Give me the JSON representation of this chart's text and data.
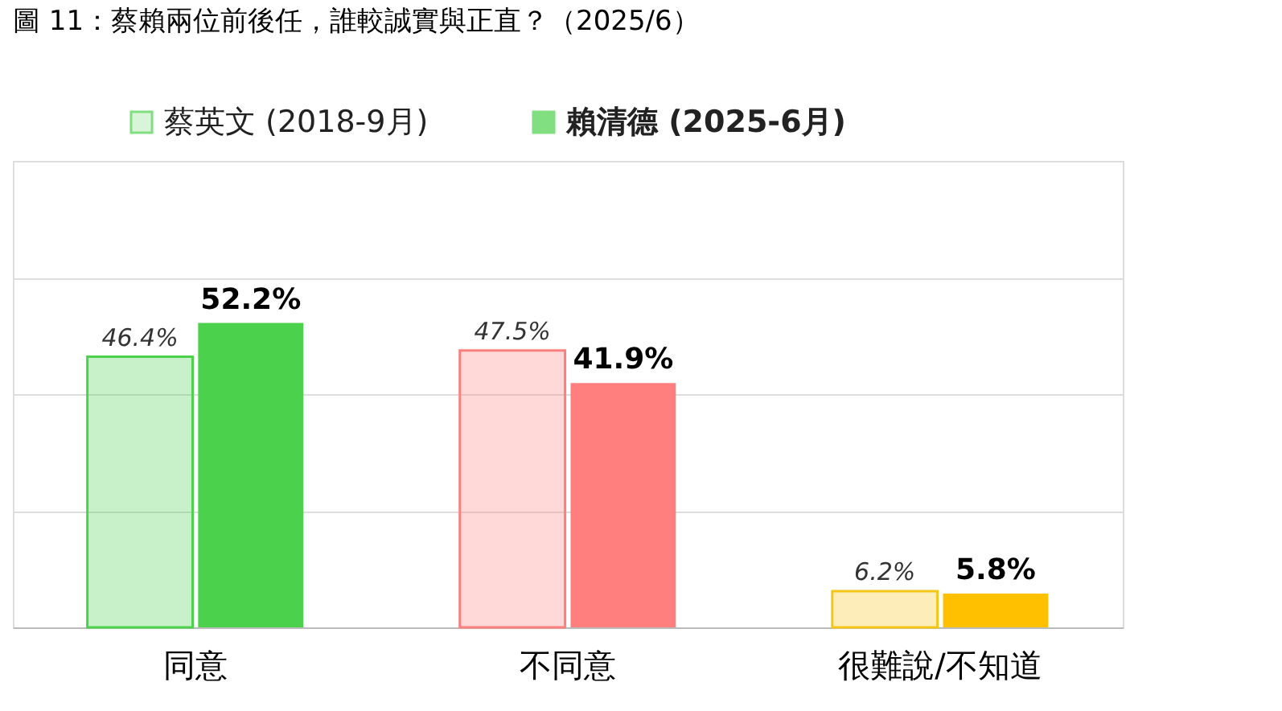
{
  "chart_data": {
    "type": "bar",
    "title": "圖 11：蔡賴兩位前後任，誰較誠實與正直？（2025/6）",
    "categories": [
      "同意",
      "不同意",
      "很難說/不知道"
    ],
    "series": [
      {
        "name": "蔡英文 (2018-9月)",
        "colors": [
          "#4cd14c",
          "#ff7f7f",
          "#f5c518"
        ],
        "values": [
          46.4,
          47.5,
          6.2
        ],
        "value_labels": [
          "46.4%",
          "47.5%",
          "6.2%"
        ]
      },
      {
        "name": "賴清德 (2025-6月)",
        "colors": [
          "#4cd14c",
          "#ff7f7f",
          "#ffc000"
        ],
        "values": [
          52.2,
          41.9,
          5.8
        ],
        "value_labels": [
          "52.2%",
          "41.9%",
          "5.8%"
        ]
      }
    ],
    "ylim": [
      0,
      80
    ],
    "yticks": [
      {
        "value": 0,
        "label": null
      },
      {
        "value": 20,
        "label": null
      },
      {
        "value": 40,
        "label": null
      },
      {
        "value": 60,
        "label": null
      },
      {
        "value": 80,
        "label": null
      }
    ],
    "tick_labels": "x",
    "grid": "y",
    "legend": "top"
  }
}
